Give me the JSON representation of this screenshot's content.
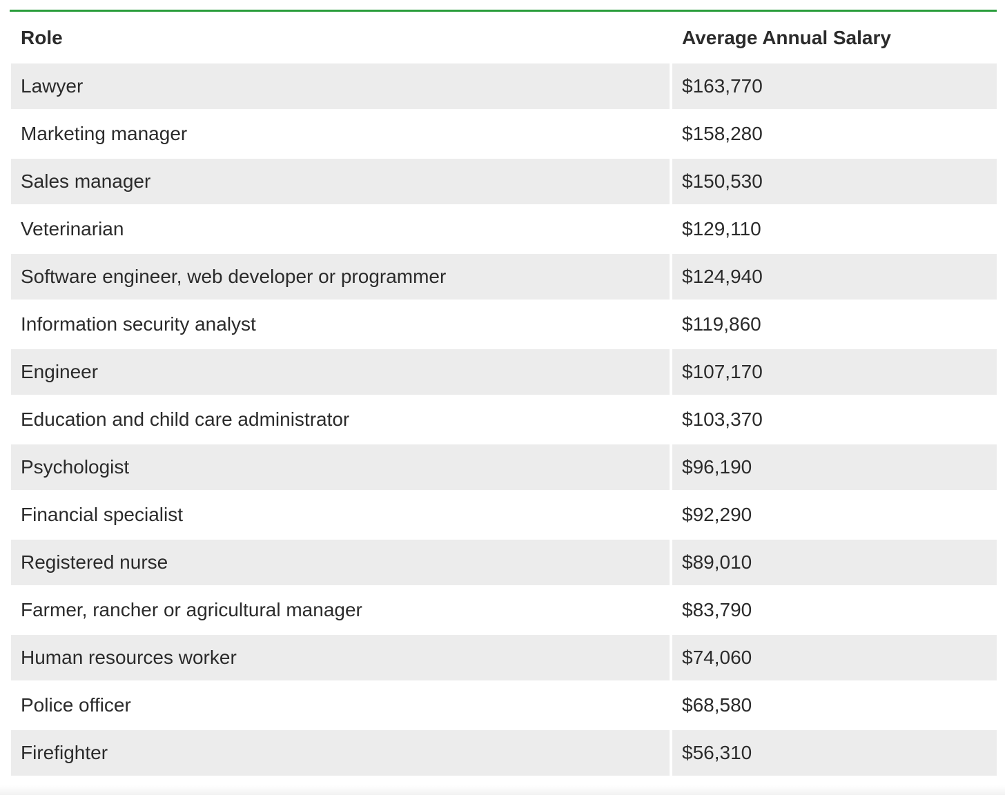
{
  "table": {
    "accent_color": "#2a9d3c",
    "row_shade_color": "#ececec",
    "headers": {
      "role": "Role",
      "salary": "Average Annual Salary"
    },
    "rows": [
      {
        "role": "Lawyer",
        "salary": "$163,770"
      },
      {
        "role": "Marketing manager",
        "salary": "$158,280"
      },
      {
        "role": "Sales manager",
        "salary": "$150,530"
      },
      {
        "role": "Veterinarian",
        "salary": "$129,110"
      },
      {
        "role": "Software engineer, web developer or programmer",
        "salary": "$124,940"
      },
      {
        "role": "Information security analyst",
        "salary": "$119,860"
      },
      {
        "role": "Engineer",
        "salary": "$107,170"
      },
      {
        "role": "Education and child care administrator",
        "salary": "$103,370"
      },
      {
        "role": "Psychologist",
        "salary": "$96,190"
      },
      {
        "role": "Financial specialist",
        "salary": "$92,290"
      },
      {
        "role": "Registered nurse",
        "salary": "$89,010"
      },
      {
        "role": "Farmer, rancher or agricultural manager",
        "salary": "$83,790"
      },
      {
        "role": "Human resources worker",
        "salary": "$74,060"
      },
      {
        "role": "Police officer",
        "salary": "$68,580"
      },
      {
        "role": "Firefighter",
        "salary": "$56,310"
      }
    ]
  }
}
